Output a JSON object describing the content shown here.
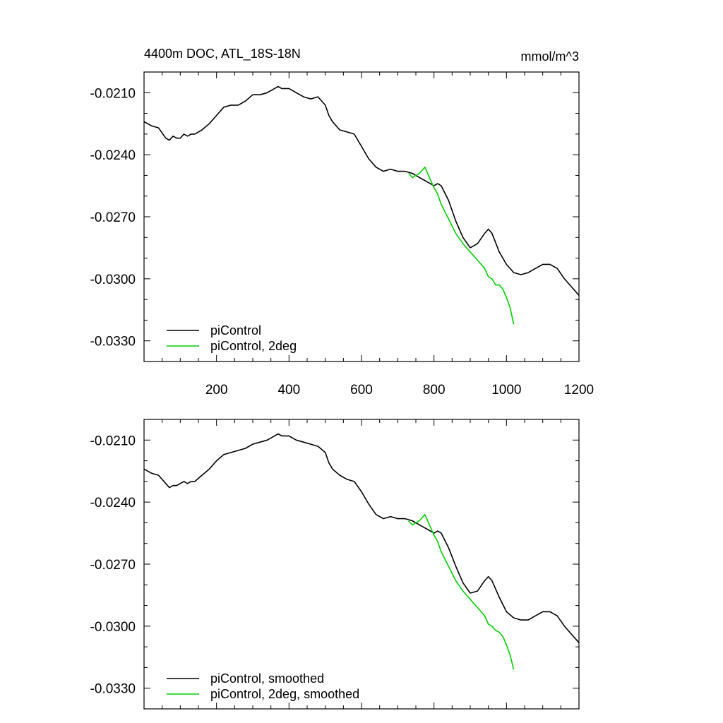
{
  "chart_data": [
    {
      "type": "line",
      "title": "4400m DOC, ATL_18S-18N",
      "units": "mmol/m^3",
      "xlim": [
        0,
        1200
      ],
      "ylim": [
        -0.034,
        -0.02
      ],
      "xticks": [
        {
          "value": 200,
          "label": "200"
        },
        {
          "value": 400,
          "label": "400"
        },
        {
          "value": 600,
          "label": "600"
        },
        {
          "value": 800,
          "label": "800"
        },
        {
          "value": 1000,
          "label": "1000"
        },
        {
          "value": 1200,
          "label": "1200"
        }
      ],
      "yticks": [
        {
          "value": -0.021,
          "label": "-0.0210"
        },
        {
          "value": -0.024,
          "label": "-0.0240"
        },
        {
          "value": -0.027,
          "label": "-0.0270"
        },
        {
          "value": -0.03,
          "label": "-0.0300"
        },
        {
          "value": -0.033,
          "label": "-0.0330"
        }
      ],
      "legend_position": "bottom-left",
      "series": [
        {
          "name": "piControl",
          "color": "#000000",
          "x": [
            0,
            20,
            40,
            60,
            70,
            80,
            90,
            100,
            110,
            120,
            130,
            140,
            160,
            180,
            200,
            220,
            240,
            260,
            280,
            300,
            320,
            340,
            360,
            370,
            380,
            400,
            420,
            440,
            460,
            480,
            500,
            510,
            520,
            540,
            560,
            580,
            600,
            620,
            640,
            660,
            680,
            700,
            720,
            740,
            760,
            780,
            800,
            810,
            820,
            840,
            860,
            880,
            900,
            920,
            940,
            950,
            960,
            980,
            1000,
            1020,
            1040,
            1060,
            1080,
            1100,
            1120,
            1140,
            1160,
            1180,
            1200
          ],
          "y": [
            -0.0224,
            -0.0226,
            -0.0227,
            -0.0232,
            -0.0233,
            -0.0231,
            -0.0232,
            -0.0232,
            -0.023,
            -0.0231,
            -0.023,
            -0.023,
            -0.0228,
            -0.0225,
            -0.0221,
            -0.0217,
            -0.0216,
            -0.0216,
            -0.0214,
            -0.0211,
            -0.0211,
            -0.021,
            -0.0208,
            -0.0207,
            -0.0208,
            -0.0208,
            -0.021,
            -0.0212,
            -0.0213,
            -0.0212,
            -0.0216,
            -0.0221,
            -0.0224,
            -0.0228,
            -0.0229,
            -0.023,
            -0.0236,
            -0.0242,
            -0.0246,
            -0.0248,
            -0.0247,
            -0.0248,
            -0.0248,
            -0.0249,
            -0.0251,
            -0.0253,
            -0.0255,
            -0.0254,
            -0.0255,
            -0.0262,
            -0.0272,
            -0.028,
            -0.0285,
            -0.0283,
            -0.0278,
            -0.0276,
            -0.0278,
            -0.0287,
            -0.0293,
            -0.0297,
            -0.0298,
            -0.0297,
            -0.0295,
            -0.0293,
            -0.0293,
            -0.0295,
            -0.03,
            -0.0304,
            -0.0308
          ]
        },
        {
          "name": "piControl, 2deg",
          "color": "#00d000",
          "x": [
            730,
            740,
            750,
            760,
            770,
            775,
            780,
            790,
            800,
            810,
            820,
            840,
            860,
            880,
            900,
            920,
            940,
            950,
            960,
            970,
            980,
            990,
            1000,
            1010,
            1020
          ],
          "y": [
            -0.0249,
            -0.0251,
            -0.025,
            -0.0249,
            -0.0247,
            -0.0246,
            -0.0248,
            -0.0252,
            -0.0256,
            -0.0259,
            -0.0264,
            -0.0271,
            -0.0278,
            -0.0283,
            -0.0287,
            -0.0291,
            -0.0295,
            -0.0299,
            -0.03,
            -0.0303,
            -0.0303,
            -0.0305,
            -0.0309,
            -0.0314,
            -0.0322
          ]
        }
      ]
    },
    {
      "type": "line",
      "xlim": [
        0,
        1200
      ],
      "ylim": [
        -0.034,
        -0.02
      ],
      "yticks": [
        {
          "value": -0.021,
          "label": "-0.0210"
        },
        {
          "value": -0.024,
          "label": "-0.0240"
        },
        {
          "value": -0.027,
          "label": "-0.0270"
        },
        {
          "value": -0.03,
          "label": "-0.0300"
        },
        {
          "value": -0.033,
          "label": "-0.0330"
        }
      ],
      "legend_position": "bottom-left",
      "series": [
        {
          "name": "piControl, smoothed",
          "color": "#000000",
          "x": [
            0,
            20,
            40,
            60,
            70,
            80,
            90,
            100,
            110,
            120,
            130,
            140,
            160,
            180,
            200,
            220,
            240,
            260,
            280,
            300,
            320,
            340,
            360,
            370,
            380,
            400,
            420,
            440,
            460,
            480,
            500,
            510,
            520,
            540,
            560,
            580,
            600,
            620,
            640,
            660,
            680,
            700,
            720,
            740,
            760,
            780,
            800,
            810,
            820,
            840,
            860,
            880,
            900,
            920,
            940,
            950,
            960,
            980,
            1000,
            1020,
            1040,
            1060,
            1080,
            1100,
            1120,
            1140,
            1160,
            1180,
            1200
          ],
          "y": [
            -0.0224,
            -0.0226,
            -0.0227,
            -0.0231,
            -0.0233,
            -0.0232,
            -0.0232,
            -0.0231,
            -0.023,
            -0.0231,
            -0.023,
            -0.023,
            -0.0227,
            -0.0224,
            -0.022,
            -0.0217,
            -0.0216,
            -0.0215,
            -0.0214,
            -0.0212,
            -0.0211,
            -0.021,
            -0.0208,
            -0.0207,
            -0.0208,
            -0.0208,
            -0.021,
            -0.0211,
            -0.0212,
            -0.0213,
            -0.0216,
            -0.0221,
            -0.0224,
            -0.0227,
            -0.0229,
            -0.023,
            -0.0235,
            -0.0241,
            -0.0246,
            -0.0248,
            -0.0247,
            -0.0248,
            -0.0248,
            -0.0249,
            -0.0251,
            -0.0253,
            -0.0255,
            -0.0254,
            -0.0255,
            -0.0262,
            -0.0271,
            -0.0279,
            -0.0284,
            -0.0283,
            -0.0278,
            -0.0276,
            -0.0278,
            -0.0286,
            -0.0293,
            -0.0296,
            -0.0297,
            -0.0297,
            -0.0295,
            -0.0293,
            -0.0293,
            -0.0295,
            -0.03,
            -0.0304,
            -0.0308
          ]
        },
        {
          "name": "piControl, 2deg, smoothed",
          "color": "#00d000",
          "x": [
            730,
            740,
            750,
            760,
            770,
            775,
            780,
            790,
            800,
            810,
            820,
            840,
            860,
            880,
            900,
            920,
            940,
            950,
            960,
            970,
            980,
            990,
            1000,
            1010,
            1020
          ],
          "y": [
            -0.0249,
            -0.0251,
            -0.025,
            -0.0249,
            -0.0247,
            -0.0246,
            -0.0248,
            -0.0252,
            -0.0256,
            -0.0259,
            -0.0264,
            -0.0271,
            -0.0278,
            -0.0283,
            -0.0287,
            -0.0291,
            -0.0295,
            -0.0299,
            -0.03,
            -0.0302,
            -0.0303,
            -0.0305,
            -0.0309,
            -0.0314,
            -0.0321
          ]
        }
      ]
    }
  ]
}
